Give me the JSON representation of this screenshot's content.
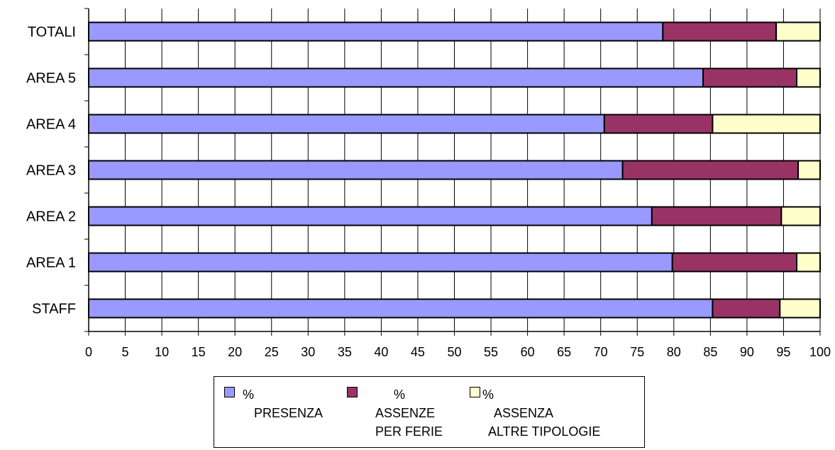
{
  "chart_data": {
    "type": "bar",
    "orientation": "horizontal",
    "stacked": true,
    "categories": [
      "TOTALI",
      "AREA 5",
      "AREA 4",
      "AREA 3",
      "AREA 2",
      "AREA 1",
      "STAFF"
    ],
    "series": [
      {
        "name": [
          "%",
          "PRESENZA"
        ],
        "color": "#9999ff",
        "values": [
          78.5,
          84,
          70.5,
          73,
          77,
          79.8,
          85.3
        ]
      },
      {
        "name": [
          "%",
          "ASSENZE",
          "PER FERIE"
        ],
        "color": "#993366",
        "values": [
          15.5,
          12.8,
          14.8,
          24,
          17.7,
          17,
          9.2
        ]
      },
      {
        "name": [
          "%",
          "ASSENZA",
          "ALTRE TIPOLOGIE"
        ],
        "color": "#ffffcc",
        "values": [
          6,
          3.2,
          14.7,
          3,
          5.3,
          3.2,
          5.5
        ]
      }
    ],
    "xlim": [
      0,
      100
    ],
    "xticks": [
      "0",
      "5",
      "10",
      "15",
      "20",
      "25",
      "30",
      "35",
      "40",
      "45",
      "50",
      "55",
      "60",
      "65",
      "70",
      "75",
      "80",
      "85",
      "90",
      "95",
      "100"
    ],
    "grid": true,
    "legend": "bottom"
  }
}
